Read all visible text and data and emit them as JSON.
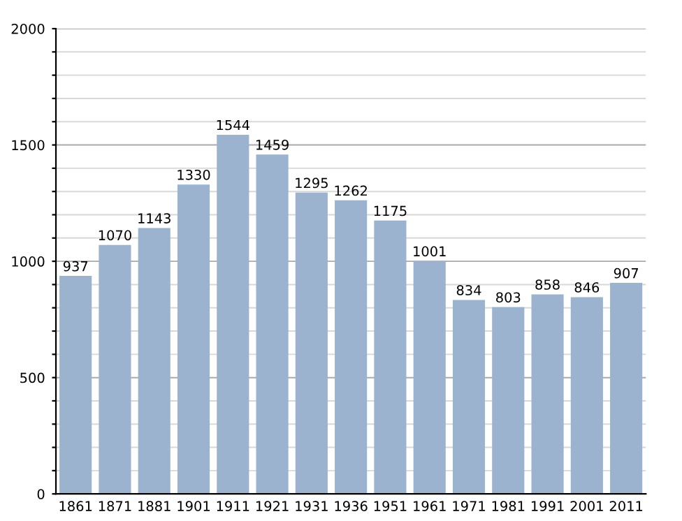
{
  "chart_data": {
    "type": "bar",
    "categories": [
      "1861",
      "1871",
      "1881",
      "1901",
      "1911",
      "1921",
      "1931",
      "1936",
      "1951",
      "1961",
      "1971",
      "1981",
      "1991",
      "2001",
      "2011"
    ],
    "values": [
      937,
      1070,
      1143,
      1330,
      1544,
      1459,
      1295,
      1262,
      1175,
      1001,
      834,
      803,
      858,
      846,
      907
    ],
    "color": "#9bb3cf",
    "data_labels": true,
    "grid": "y",
    "ylim": [
      0,
      2000
    ],
    "yticks": [
      0,
      {
        "value": 100,
        "label": null
      },
      {
        "value": 200,
        "label": null
      },
      {
        "value": 300,
        "label": null
      },
      {
        "value": 400,
        "label": null
      },
      500,
      {
        "value": 600,
        "label": null
      },
      {
        "value": 700,
        "label": null
      },
      {
        "value": 800,
        "label": null
      },
      {
        "value": 900,
        "label": null
      },
      1000,
      {
        "value": 1100,
        "label": null
      },
      {
        "value": 1200,
        "label": null
      },
      {
        "value": 1300,
        "label": null
      },
      {
        "value": 1400,
        "label": null
      },
      1500,
      {
        "value": 1600,
        "label": null
      },
      {
        "value": 1700,
        "label": null
      },
      {
        "value": 1800,
        "label": null
      },
      {
        "value": 1900,
        "label": null
      },
      2000
    ]
  }
}
